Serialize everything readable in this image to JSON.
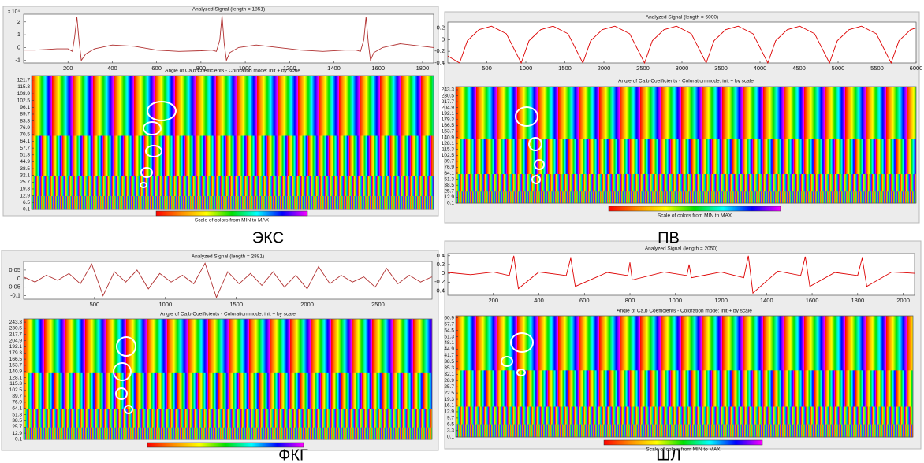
{
  "chart_data": [
    {
      "type": "line",
      "title": "Analyzed Signal (length = 1851)",
      "y_scale_label": "x 10⁴",
      "color": "#b03030",
      "x": [
        0,
        50,
        100,
        150,
        200,
        220,
        230,
        240,
        250,
        260,
        280,
        320,
        400,
        500,
        600,
        700,
        800,
        850,
        870,
        885,
        895,
        905,
        915,
        930,
        970,
        1050,
        1150,
        1250,
        1350,
        1450,
        1500,
        1520,
        1535,
        1545,
        1555,
        1565,
        1580,
        1620,
        1700,
        1800,
        1850
      ],
      "values": [
        -0.2,
        -0.2,
        -0.15,
        -0.1,
        -0.1,
        -0.3,
        0.8,
        2.4,
        0.5,
        -1.0,
        -0.5,
        -0.1,
        0.2,
        0.1,
        -0.2,
        -0.3,
        -0.25,
        -0.2,
        -0.3,
        0.6,
        2.5,
        0.3,
        -1.0,
        -0.4,
        0,
        0.2,
        0,
        -0.2,
        -0.3,
        -0.2,
        -0.2,
        -0.3,
        0.6,
        2.4,
        0.4,
        -1.0,
        -0.4,
        0,
        0.3,
        0.1,
        0
      ],
      "xlim": [
        0,
        1850
      ],
      "ylim": [
        -1.2,
        2.6
      ],
      "xticks": [
        200,
        400,
        600,
        800,
        1000,
        1200,
        1400,
        1600,
        1800
      ],
      "yticks": [
        -1,
        0,
        1,
        2
      ]
    },
    {
      "type": "heatmap",
      "title": "Angle of Ca,b Coefficients - Coloration mode: init + by scale",
      "ylim": [
        0,
        126
      ],
      "yticks": [
        121.7,
        115.3,
        108.9,
        102.5,
        96.1,
        89.7,
        83.3,
        76.9,
        70.5,
        64.1,
        57.7,
        51.3,
        44.9,
        38.5,
        32.1,
        25.7,
        19.3,
        12.9,
        6.5,
        0.1
      ],
      "colormap": [
        "#ff0000",
        "#ff8c00",
        "#ffff00",
        "#00e000",
        "#00ffff",
        "#0000ff",
        "#ff00ff"
      ],
      "colorbar_label": "Scale of colors from MIN to MAX",
      "caption": "ЭКС"
    },
    {
      "type": "line",
      "title": "Analyzed Signal (length = 6000)",
      "color": "#dd0000",
      "x": [
        0,
        150,
        250,
        400,
        560,
        750,
        940,
        1040,
        1190,
        1350,
        1540,
        1730,
        1830,
        1980,
        2140,
        2330,
        2520,
        2620,
        2770,
        2930,
        3120,
        3310,
        3410,
        3560,
        3720,
        3910,
        4100,
        4200,
        4350,
        4510,
        4700,
        4890,
        4990,
        5140,
        5300,
        5490,
        5680,
        5780,
        5930,
        6000
      ],
      "values": [
        -0.28,
        -0.4,
        -0.02,
        0.17,
        0.23,
        0.1,
        -0.4,
        -0.02,
        0.17,
        0.23,
        0.1,
        -0.4,
        -0.02,
        0.17,
        0.23,
        0.1,
        -0.4,
        -0.02,
        0.17,
        0.23,
        0.1,
        -0.4,
        -0.02,
        0.17,
        0.23,
        0.1,
        -0.4,
        -0.02,
        0.17,
        0.23,
        0.1,
        -0.4,
        -0.02,
        0.17,
        0.23,
        0.1,
        -0.4,
        -0.02,
        0.17,
        0.2
      ],
      "xlim": [
        0,
        6000
      ],
      "ylim": [
        -0.4,
        0.3
      ],
      "xticks": [
        500,
        1000,
        1500,
        2000,
        2500,
        3000,
        3500,
        4000,
        4500,
        5000,
        5500,
        6000
      ],
      "yticks": [
        -0.4,
        -0.2,
        0,
        0.2
      ]
    },
    {
      "type": "heatmap",
      "title": "Angle of Ca,b Coefficients - Coloration mode: init + by scale",
      "ylim": [
        0,
        250
      ],
      "yticks": [
        243.3,
        230.5,
        217.7,
        204.9,
        192.1,
        179.3,
        166.5,
        153.7,
        140.9,
        128.1,
        115.3,
        102.5,
        89.7,
        76.9,
        64.1,
        51.3,
        38.5,
        25.7,
        12.9,
        0.1
      ],
      "colormap": [
        "#ff0000",
        "#ff8c00",
        "#ffff00",
        "#00e000",
        "#00ffff",
        "#0000ff",
        "#ff00ff"
      ],
      "colorbar_label": "Scale of colors from MIN to MAX",
      "caption": "ПВ"
    },
    {
      "type": "line",
      "title": "Analyzed Signal (length = 2881)",
      "color": "#b03030",
      "x": [
        0,
        80,
        160,
        240,
        320,
        400,
        480,
        560,
        640,
        720,
        800,
        880,
        960,
        1040,
        1120,
        1200,
        1280,
        1360,
        1440,
        1520,
        1600,
        1680,
        1760,
        1840,
        1920,
        2000,
        2080,
        2160,
        2240,
        2320,
        2400,
        2480,
        2560,
        2640,
        2720,
        2800,
        2880
      ],
      "values": [
        0.01,
        -0.02,
        0.02,
        -0.01,
        0.03,
        -0.03,
        0.085,
        -0.1,
        0.04,
        -0.02,
        0.05,
        -0.06,
        0.03,
        -0.02,
        0.02,
        -0.03,
        0.09,
        -0.11,
        0.04,
        -0.03,
        0.03,
        -0.04,
        0.04,
        -0.05,
        0.02,
        -0.06,
        0.07,
        -0.03,
        0.02,
        -0.02,
        0.01,
        -0.05,
        0.06,
        -0.03,
        0.02,
        -0.02,
        0.01
      ],
      "xlim": [
        0,
        2881
      ],
      "ylim": [
        -0.12,
        0.1
      ],
      "xticks": [
        500,
        1000,
        1500,
        2000,
        2500
      ],
      "yticks": [
        -0.1,
        -0.05,
        0,
        0.05
      ]
    },
    {
      "type": "heatmap",
      "title": "Angle of Ca,b Coefficients - Coloration mode: init + by scale",
      "ylim": [
        0,
        250
      ],
      "yticks": [
        243.3,
        230.5,
        217.7,
        204.9,
        192.1,
        179.3,
        166.5,
        153.7,
        140.9,
        128.1,
        115.3,
        102.5,
        89.7,
        76.9,
        64.1,
        51.3,
        38.5,
        25.7,
        12.9,
        0.1
      ],
      "colormap": [
        "#ff0000",
        "#ff8c00",
        "#ffff00",
        "#00e000",
        "#00ffff",
        "#0000ff",
        "#ff00ff"
      ],
      "caption": "ФКГ"
    },
    {
      "type": "line",
      "title": "Analyzed Signal (length = 2050)",
      "color": "#dd0000",
      "x": [
        0,
        100,
        200,
        270,
        290,
        310,
        400,
        520,
        540,
        560,
        700,
        790,
        800,
        810,
        950,
        1050,
        1060,
        1070,
        1200,
        1300,
        1320,
        1340,
        1450,
        1550,
        1570,
        1590,
        1700,
        1800,
        1820,
        1840,
        1950,
        2050
      ],
      "values": [
        0.02,
        -0.03,
        0.03,
        -0.05,
        0.4,
        -0.35,
        0.03,
        -0.05,
        0.35,
        -0.3,
        0.02,
        -0.05,
        0.25,
        -0.15,
        0.03,
        -0.05,
        0.2,
        -0.1,
        0.03,
        -0.1,
        0.4,
        -0.45,
        0.05,
        -0.05,
        0.38,
        -0.3,
        0.02,
        -0.05,
        0.35,
        -0.3,
        0.03,
        0
      ],
      "xlim": [
        0,
        2050
      ],
      "ylim": [
        -0.5,
        0.45
      ],
      "xticks": [
        200,
        400,
        600,
        800,
        1000,
        1200,
        1400,
        1600,
        1800,
        2000
      ],
      "yticks": [
        -0.4,
        -0.2,
        0,
        0.2,
        0.4
      ]
    },
    {
      "type": "heatmap",
      "title": "Angle of Ca,b Coefficients - Coloration mode: init + by scale",
      "ylim": [
        0,
        62
      ],
      "yticks": [
        60.9,
        57.7,
        54.5,
        51.3,
        48.1,
        44.9,
        41.7,
        38.5,
        35.3,
        32.1,
        28.9,
        25.7,
        22.5,
        19.3,
        16.1,
        12.9,
        9.7,
        6.5,
        3.3,
        0.1
      ],
      "colormap": [
        "#ff0000",
        "#ff8c00",
        "#ffff00",
        "#00e000",
        "#00ffff",
        "#0000ff",
        "#ff00ff"
      ],
      "colorbar_label": "Scale of colors from MIN to MAX",
      "caption": "ШЛ"
    }
  ]
}
